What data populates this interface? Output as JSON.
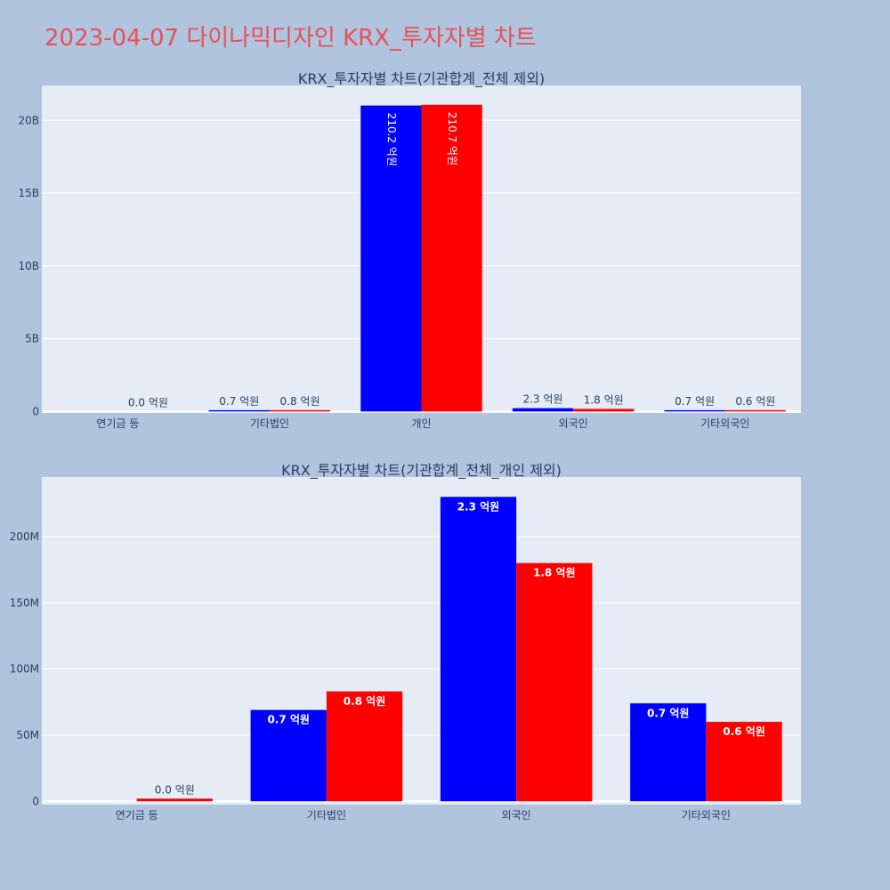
{
  "page": {
    "title": "2023-04-07 다이나믹디자인 KRX_투자자별 차트"
  },
  "colors": {
    "buy": "#0000ff",
    "sell": "#ff0000",
    "plot_bg": "#e5ecf6",
    "page_bg": "#b0c4de"
  },
  "chart_data": [
    {
      "type": "bar",
      "title": "KRX_투자자별 차트(기관합계_전체 제외)",
      "categories": [
        "연기금 등",
        "기타법인",
        "개인",
        "외국인",
        "기타외국인"
      ],
      "series": [
        {
          "name": "buy",
          "color": "#0000ff",
          "values": [
            0,
            70000000,
            21020000000,
            230000000,
            70000000
          ],
          "labels": [
            "",
            "0.7 억원",
            "210.2 억원",
            "2.3 억원",
            "0.7 억원"
          ]
        },
        {
          "name": "sell",
          "color": "#ff0000",
          "values": [
            0,
            80000000,
            21070000000,
            180000000,
            60000000
          ],
          "labels": [
            "0.0 억원",
            "0.8 억원",
            "210.7 억원",
            "1.8 억원",
            "0.6 억원"
          ]
        }
      ],
      "ylim": [
        -100000000,
        22400000000
      ],
      "yticks": [
        {
          "value": 0,
          "label": "0"
        },
        {
          "value": 5000000000,
          "label": "5B"
        },
        {
          "value": 10000000000,
          "label": "10B"
        },
        {
          "value": 15000000000,
          "label": "15B"
        },
        {
          "value": 20000000000,
          "label": "20B"
        }
      ]
    },
    {
      "type": "bar",
      "title": "KRX_투자자별 차트(기관합계_전체_개인 제외)",
      "categories": [
        "연기금 등",
        "기타법인",
        "외국인",
        "기타외국인"
      ],
      "series": [
        {
          "name": "buy",
          "color": "#0000ff",
          "values": [
            0,
            69000000,
            230000000,
            74000000
          ],
          "labels": [
            "",
            "0.7 억원",
            "2.3 억원",
            "0.7 억원"
          ]
        },
        {
          "name": "sell",
          "color": "#ff0000",
          "values": [
            2000000,
            83000000,
            180000000,
            60000000
          ],
          "labels": [
            "0.0 억원",
            "0.8 억원",
            "1.8 억원",
            "0.6 억원"
          ]
        }
      ],
      "ylim": [
        -2500000,
        245000000
      ],
      "yticks": [
        {
          "value": 0,
          "label": "0"
        },
        {
          "value": 50000000,
          "label": "50M"
        },
        {
          "value": 100000000,
          "label": "100M"
        },
        {
          "value": 150000000,
          "label": "150M"
        },
        {
          "value": 200000000,
          "label": "200M"
        }
      ]
    }
  ]
}
